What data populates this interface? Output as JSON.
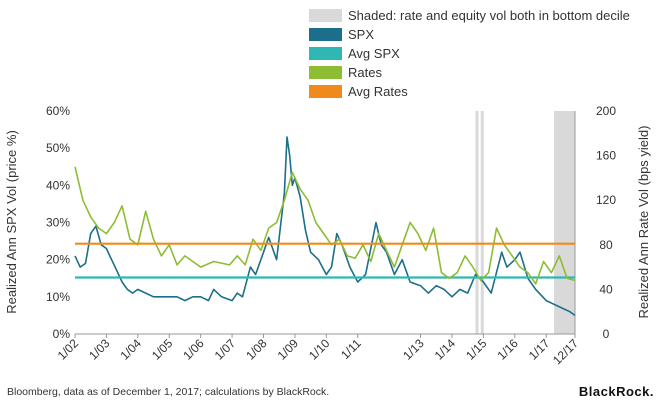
{
  "legend": [
    {
      "label": "Shaded: rate and equity vol both in bottom decile",
      "color": "#d9d9d9"
    },
    {
      "label": "SPX",
      "color": "#1b6f8a"
    },
    {
      "label": "Avg SPX",
      "color": "#2fb7b3"
    },
    {
      "label": "Rates",
      "color": "#8dbd33"
    },
    {
      "label": "Avg Rates",
      "color": "#f08a1c"
    }
  ],
  "footnote": "Bloomberg, data as of December 1, 2017; calculations by BlackRock.",
  "brand": "BlackRock.",
  "chart_data": {
    "type": "line",
    "x_tick_labels": [
      "1/02",
      "1/03",
      "1/04",
      "1/05",
      "1/06",
      "1/07",
      "1/08",
      "1/09",
      "1/10",
      "1/11",
      "1/13",
      "1/14",
      "1/15",
      "1/16",
      "1/17",
      "12/17"
    ],
    "x_tick_dates": [
      "2002-01",
      "2003-01",
      "2004-01",
      "2005-01",
      "2006-01",
      "2007-01",
      "2008-01",
      "2009-01",
      "2010-01",
      "2011-01",
      "2013-01",
      "2014-01",
      "2015-01",
      "2016-01",
      "2017-01",
      "2017-12"
    ],
    "xlim": [
      "2002-01",
      "2017-12"
    ],
    "ylabel_left": "Realized Ann SPX Vol (price %)",
    "ylabel_right": "Realized Ann Rate Vol (bps yield)",
    "ylim_left": [
      0,
      60
    ],
    "ylim_right": [
      0,
      200
    ],
    "yticks_left": [
      "0%",
      "10%",
      "20%",
      "30%",
      "40%",
      "50%",
      "60%"
    ],
    "yticks_right": [
      "0",
      "40",
      "80",
      "120",
      "160",
      "200"
    ],
    "shaded_periods": [
      [
        "2014-10",
        "2014-11"
      ],
      [
        "2014-12",
        "2015-01"
      ],
      [
        "2017-04",
        "2017-12"
      ]
    ],
    "series": [
      {
        "name": "SPX",
        "axis": "left",
        "color": "#1b6f8a",
        "x": [
          "2002-01",
          "2002-03",
          "2002-05",
          "2002-07",
          "2002-09",
          "2002-11",
          "2003-01",
          "2003-03",
          "2003-05",
          "2003-07",
          "2003-09",
          "2003-11",
          "2004-01",
          "2004-04",
          "2004-07",
          "2004-10",
          "2005-01",
          "2005-04",
          "2005-07",
          "2005-10",
          "2006-01",
          "2006-04",
          "2006-06",
          "2006-09",
          "2007-01",
          "2007-03",
          "2007-05",
          "2007-08",
          "2007-10",
          "2008-01",
          "2008-03",
          "2008-06",
          "2008-09",
          "2008-10",
          "2008-11",
          "2008-12",
          "2009-01",
          "2009-03",
          "2009-05",
          "2009-07",
          "2009-10",
          "2010-01",
          "2010-03",
          "2010-05",
          "2010-07",
          "2010-10",
          "2011-01",
          "2011-04",
          "2011-08",
          "2011-10",
          "2011-12",
          "2012-03",
          "2012-06",
          "2012-09",
          "2013-01",
          "2013-04",
          "2013-07",
          "2013-10",
          "2014-01",
          "2014-04",
          "2014-07",
          "2014-10",
          "2015-01",
          "2015-04",
          "2015-08",
          "2015-10",
          "2016-01",
          "2016-03",
          "2016-06",
          "2016-09",
          "2017-01",
          "2017-04",
          "2017-07",
          "2017-10",
          "2017-12"
        ],
        "values": [
          21,
          18,
          19,
          27,
          29,
          24,
          23,
          20,
          17,
          14,
          12,
          11,
          12,
          11,
          10,
          10,
          10,
          10,
          9,
          10,
          10,
          9,
          12,
          10,
          9,
          11,
          10,
          18,
          16,
          22,
          26,
          20,
          38,
          53,
          48,
          40,
          42,
          37,
          28,
          22,
          20,
          16,
          18,
          27,
          24,
          18,
          14,
          16,
          30,
          24,
          22,
          16,
          20,
          14,
          13,
          11,
          13,
          12,
          10,
          12,
          11,
          16,
          14,
          11,
          22,
          18,
          20,
          22,
          15,
          12,
          9,
          8,
          7,
          6,
          5
        ]
      },
      {
        "name": "Avg SPX",
        "axis": "left",
        "color": "#2fb7b3",
        "x": [
          "2002-01",
          "2017-12"
        ],
        "values": [
          15.2,
          15.2
        ]
      },
      {
        "name": "Rates",
        "axis": "right",
        "color": "#8dbd33",
        "x": [
          "2002-01",
          "2002-04",
          "2002-07",
          "2002-10",
          "2003-01",
          "2003-04",
          "2003-07",
          "2003-10",
          "2004-01",
          "2004-04",
          "2004-07",
          "2004-10",
          "2005-01",
          "2005-04",
          "2005-07",
          "2005-10",
          "2006-01",
          "2006-06",
          "2006-12",
          "2007-03",
          "2007-06",
          "2007-09",
          "2007-12",
          "2008-03",
          "2008-06",
          "2008-09",
          "2008-12",
          "2009-03",
          "2009-06",
          "2009-09",
          "2009-12",
          "2010-03",
          "2010-06",
          "2010-09",
          "2010-12",
          "2011-03",
          "2011-06",
          "2011-09",
          "2011-12",
          "2012-03",
          "2012-06",
          "2012-09",
          "2012-12",
          "2013-03",
          "2013-06",
          "2013-09",
          "2013-12",
          "2014-03",
          "2014-06",
          "2014-09",
          "2014-12",
          "2015-03",
          "2015-06",
          "2015-09",
          "2015-12",
          "2016-03",
          "2016-06",
          "2016-09",
          "2016-12",
          "2017-03",
          "2017-06",
          "2017-09",
          "2017-12"
        ],
        "values": [
          150,
          120,
          105,
          95,
          90,
          100,
          115,
          85,
          80,
          110,
          85,
          70,
          80,
          62,
          70,
          65,
          60,
          65,
          62,
          70,
          62,
          85,
          75,
          95,
          100,
          120,
          145,
          130,
          120,
          100,
          90,
          80,
          85,
          70,
          68,
          80,
          65,
          90,
          75,
          60,
          80,
          100,
          90,
          75,
          95,
          55,
          50,
          55,
          70,
          60,
          48,
          55,
          95,
          80,
          70,
          60,
          55,
          45,
          65,
          55,
          70,
          50,
          48
        ]
      },
      {
        "name": "Avg Rates",
        "axis": "right",
        "color": "#f08a1c",
        "x": [
          "2002-01",
          "2017-12"
        ],
        "values": [
          81,
          81
        ]
      }
    ]
  }
}
